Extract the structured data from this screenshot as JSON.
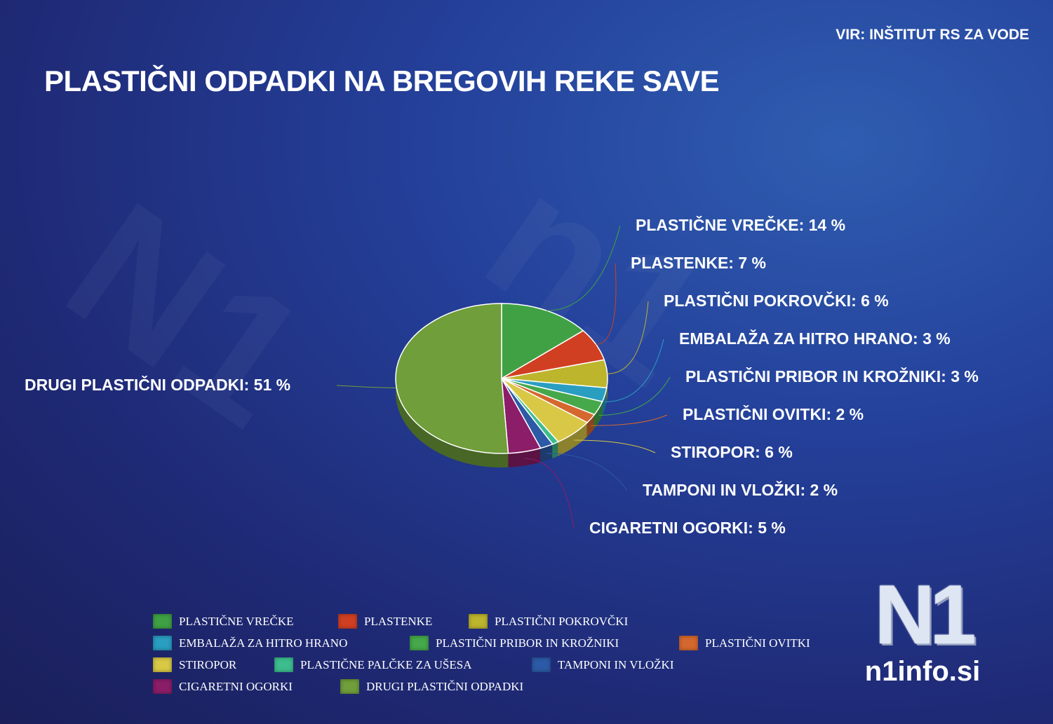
{
  "title": "PLASTIČNI ODPADKI NA BREGOVIH REKE SAVE",
  "source": "VIR: INŠTITUT RS ZA VODE",
  "logo": {
    "mark": "N1",
    "site": "n1info.si"
  },
  "chart_data": {
    "type": "pie",
    "title": "PLASTIČNI ODPADKI NA BREGOVIH REKE SAVE",
    "unit": "%",
    "style": "3d",
    "legend_position": "bottom",
    "slices": [
      {
        "name": "PLASTIČNE VREČKE",
        "value": 14,
        "label": "PLASTIČNE VREČKE: 14 %",
        "color": "#3fa144"
      },
      {
        "name": "PLASTENKE",
        "value": 7,
        "label": "PLASTENKE: 7 %",
        "color": "#d13f22"
      },
      {
        "name": "PLASTIČNI POKROVČKI",
        "value": 6,
        "label": "PLASTIČNI POKROVČKI: 6 %",
        "color": "#bdb52c"
      },
      {
        "name": "EMBALAŽA ZA HITRO HRANO",
        "value": 3,
        "label": "EMBALAŽA ZA HITRO HRANO: 3 %",
        "color": "#2a9ec0"
      },
      {
        "name": "PLASTIČNI PRIBOR IN KROŽNIKI",
        "value": 3,
        "label": "PLASTIČNI PRIBOR IN KROŽNIKI: 3 %",
        "color": "#45a84a"
      },
      {
        "name": "PLASTIČNI OVITKI",
        "value": 2,
        "label": "PLASTIČNI OVITKI: 2 %",
        "color": "#d4682e"
      },
      {
        "name": "STIROPOR",
        "value": 6,
        "label": "STIROPOR: 6 %",
        "color": "#d8c845"
      },
      {
        "name": "PLASTIČNE PALČKE ZA UŠESA",
        "value": 1,
        "label": "",
        "color": "#3dbd8e"
      },
      {
        "name": "TAMPONI IN VLOŽKI",
        "value": 2,
        "label": "TAMPONI IN VLOŽKI: 2 %",
        "color": "#2c5aa6"
      },
      {
        "name": "CIGARETNI OGORKI",
        "value": 5,
        "label": "CIGARETNI OGORKI: 5 %",
        "color": "#8c1d68"
      },
      {
        "name": "DRUGI PLASTIČNI ODPADKI",
        "value": 51,
        "label": "DRUGI PLASTIČNI ODPADKI: 51 %",
        "color": "#6f9e3a"
      }
    ]
  }
}
